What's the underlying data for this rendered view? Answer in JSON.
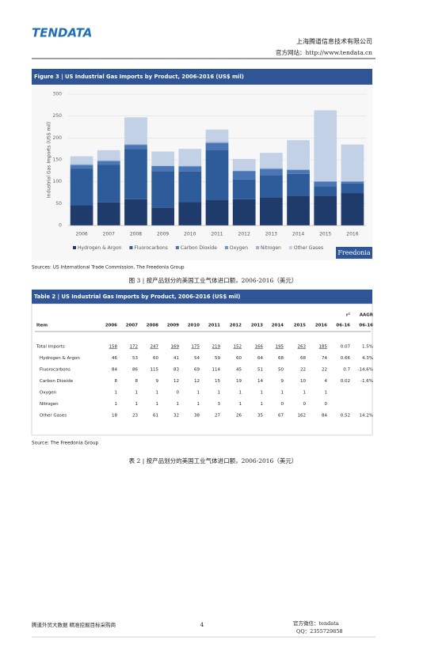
{
  "header": {
    "logo": "TENDATA",
    "company": "上海腾道信息技术有限公司",
    "website": "官方网站：http://www.tendata.cn"
  },
  "chart_data": {
    "type": "stacked-bar",
    "title": "Figure 3 | US Industrial Gas Imports by Product, 2006-2016 (US$ mil)",
    "y_label": "Industrial Gas Imports (US$ mil)",
    "source_logo": "Freedonia",
    "categories": [
      "2006",
      "2007",
      "2008",
      "2009",
      "2010",
      "2011",
      "2012",
      "2013",
      "2014",
      "2015",
      "2016"
    ],
    "series": [
      {
        "name": "Hydrogen & Argon",
        "color": "#1f3b6b",
        "values": [
          46,
          53,
          60,
          41,
          54,
          59,
          60,
          64,
          68,
          68,
          74
        ]
      },
      {
        "name": "Fluorocarbons",
        "color": "#2e5b9a",
        "values": [
          84,
          86,
          115,
          83,
          69,
          114,
          45,
          51,
          50,
          22,
          22
        ]
      },
      {
        "name": "Carbon Dioxide",
        "color": "#4a77b4",
        "values": [
          8,
          8,
          9,
          12,
          12,
          15,
          19,
          14,
          9,
          10,
          4
        ]
      },
      {
        "name": "Oxygen",
        "color": "#7195c8",
        "values": [
          1,
          1,
          1,
          0,
          1,
          1,
          1,
          1,
          1,
          1,
          1
        ]
      },
      {
        "name": "Nitrogen",
        "color": "#9cb4d8",
        "values": [
          1,
          1,
          1,
          1,
          1,
          3,
          1,
          1,
          0,
          0,
          0
        ]
      },
      {
        "name": "Other Gases",
        "color": "#c3d1e7",
        "values": [
          18,
          23,
          61,
          32,
          38,
          27,
          26,
          35,
          67,
          162,
          84
        ]
      }
    ],
    "ylim": [
      0,
      300
    ],
    "yticks": [
      0,
      50,
      100,
      150,
      200,
      250,
      300
    ],
    "grid": true
  },
  "figure_source": "Sources: US International Trade Commission, The Freedonia Group",
  "figure_caption": "图 3 | 按产品划分的美国工业气体进口额，2006-2016（美元）",
  "table": {
    "title": "Table 2 | US Industrial Gas Imports by Product, 2006-2016 (US$ mil)",
    "columns_top": [
      null,
      null,
      null,
      null,
      null,
      null,
      null,
      null,
      null,
      null,
      null,
      null,
      "r²",
      "AAGR"
    ],
    "columns": [
      "Item",
      "2006",
      "2007",
      "2008",
      "2009",
      "2010",
      "2011",
      "2012",
      "2013",
      "2014",
      "2015",
      "2016",
      "06-16",
      "06-16"
    ],
    "rows": [
      {
        "underline": true,
        "cells": [
          "Total Imports",
          158,
          172,
          247,
          169,
          175,
          219,
          152,
          166,
          195,
          263,
          185,
          0.07,
          "1.5%"
        ]
      },
      {
        "underline": false,
        "cells": [
          "Hydrogen & Argon",
          46,
          53,
          60,
          41,
          54,
          59,
          60,
          64,
          68,
          68,
          74,
          0.66,
          "4.3%"
        ]
      },
      {
        "underline": false,
        "cells": [
          "Fluorocarbons",
          84,
          86,
          115,
          83,
          69,
          114,
          45,
          51,
          50,
          22,
          22,
          0.7,
          "-14.6%"
        ]
      },
      {
        "underline": false,
        "cells": [
          "Carbon Dioxide",
          8,
          8,
          9,
          12,
          12,
          15,
          19,
          14,
          9,
          10,
          4,
          0.02,
          "-1.6%"
        ]
      },
      {
        "underline": false,
        "cells": [
          "Oxygen",
          1,
          1,
          1,
          0,
          1,
          1,
          1,
          1,
          1,
          1,
          1,
          null,
          null
        ]
      },
      {
        "underline": false,
        "cells": [
          "Nitrogen",
          1,
          1,
          1,
          1,
          1,
          3,
          1,
          1,
          0,
          0,
          0,
          null,
          null
        ]
      },
      {
        "underline": false,
        "cells": [
          "Other Gases",
          18,
          23,
          61,
          32,
          38,
          27,
          26,
          35,
          67,
          162,
          84,
          0.52,
          "14.2%"
        ]
      }
    ]
  },
  "table_source": "Source: The Freedonia Group",
  "table_caption": "表 2 | 按产品划分的美国工业气体进口额，2006-2016（美元）",
  "footer": {
    "left": "腾道外贸大数据  精准挖掘目标采购商",
    "page": "4",
    "wechat": "官方微信：tendata",
    "qq": "QQ：2355729858"
  }
}
